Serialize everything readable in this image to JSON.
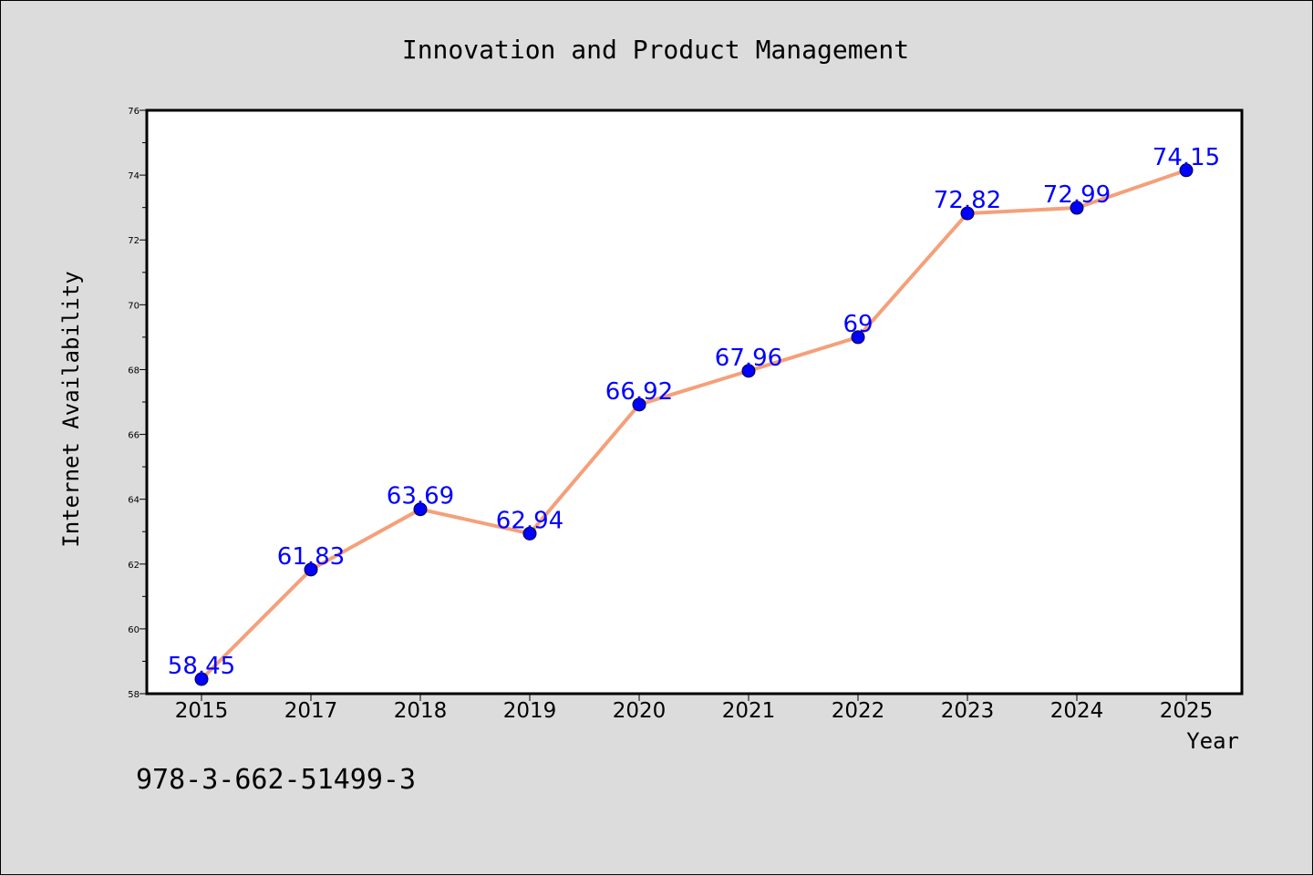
{
  "chart_data": {
    "type": "line",
    "title": "Innovation and Product Management",
    "xlabel": "Year",
    "ylabel": "Internet Availability",
    "categories": [
      "2015",
      "2017",
      "2018",
      "2019",
      "2020",
      "2021",
      "2022",
      "2023",
      "2024",
      "2025"
    ],
    "series": [
      {
        "values": [
          58.45,
          61.83,
          63.69,
          62.94,
          66.92,
          67.96,
          69,
          72.82,
          72.99,
          74.15
        ],
        "data_labels": [
          "58.45",
          "61.83",
          "63.69",
          "62.94",
          "66.92",
          "67.96",
          "69",
          "72.82",
          "72.99",
          "74.15"
        ]
      }
    ],
    "ylim": [
      58,
      76
    ],
    "y_ticks": [
      "58",
      "60",
      "62",
      "64",
      "66",
      "68",
      "70",
      "72",
      "74",
      "76"
    ],
    "grid": false,
    "legend": "none",
    "colors": {
      "line": "#f4a07a",
      "marker_fill": "#0000ff",
      "marker_edge": "#000033",
      "data_label": "#0000ff",
      "plot_background": "#ffffff",
      "figure_background": "#dcdcdc"
    }
  },
  "footer": {
    "isbn": "978-3-662-51499-3"
  }
}
